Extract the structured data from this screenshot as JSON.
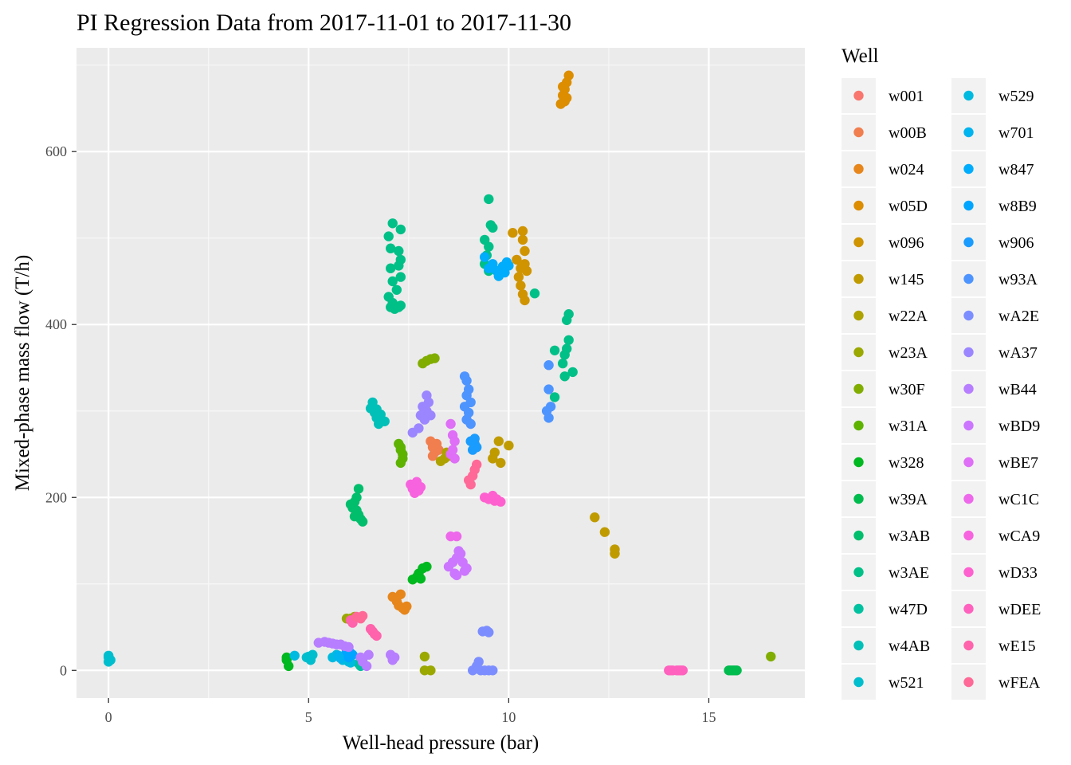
{
  "chart_data": {
    "type": "scatter",
    "title": "PI Regression Data from 2017-11-01 to 2017-11-30",
    "xlabel": "Well-head pressure (bar)",
    "ylabel": "Mixed-phase mass flow (T/h)",
    "xlim": [
      -0.8,
      17.4
    ],
    "ylim": [
      -32,
      720
    ],
    "xticks": [
      0,
      5,
      10,
      15
    ],
    "yticks": [
      0,
      200,
      400,
      600
    ],
    "grid": true,
    "legend": {
      "title": "Well",
      "position": "right",
      "columns": 2
    },
    "series": [
      {
        "name": "w001",
        "color": "#F8766D",
        "points": []
      },
      {
        "name": "w00B",
        "color": "#F17E4E",
        "points": [
          [
            8.05,
            265
          ],
          [
            8.1,
            258
          ],
          [
            8.15,
            252
          ],
          [
            8.2,
            262
          ],
          [
            8.1,
            248
          ],
          [
            8.25,
            255
          ]
        ]
      },
      {
        "name": "w024",
        "color": "#E7861B",
        "points": [
          [
            7.1,
            85
          ],
          [
            7.2,
            80
          ],
          [
            7.25,
            75
          ],
          [
            7.3,
            88
          ],
          [
            7.35,
            72
          ],
          [
            7.4,
            70
          ],
          [
            7.45,
            74
          ]
        ]
      },
      {
        "name": "w05D",
        "color": "#DC8D00",
        "points": [
          [
            11.3,
            655
          ],
          [
            11.35,
            665
          ],
          [
            11.4,
            672
          ],
          [
            11.45,
            680
          ],
          [
            11.5,
            688
          ],
          [
            11.4,
            658
          ],
          [
            11.45,
            662
          ],
          [
            11.35,
            675
          ]
        ]
      },
      {
        "name": "w096",
        "color": "#CF9400",
        "points": [
          [
            10.1,
            506
          ],
          [
            10.35,
            508
          ],
          [
            10.4,
            485
          ],
          [
            10.2,
            475
          ],
          [
            10.3,
            465
          ],
          [
            10.25,
            455
          ],
          [
            10.3,
            445
          ],
          [
            10.35,
            435
          ],
          [
            10.4,
            428
          ],
          [
            10.45,
            462
          ],
          [
            10.4,
            470
          ],
          [
            10.35,
            498
          ]
        ]
      },
      {
        "name": "w145",
        "color": "#C09B00",
        "points": [
          [
            9.6,
            245
          ],
          [
            9.65,
            252
          ],
          [
            9.75,
            265
          ],
          [
            9.8,
            240
          ],
          [
            10.0,
            260
          ],
          [
            12.15,
            177
          ],
          [
            12.4,
            160
          ],
          [
            12.65,
            140
          ],
          [
            12.65,
            135
          ]
        ]
      },
      {
        "name": "w22A",
        "color": "#AEA200",
        "points": [
          [
            8.3,
            242
          ],
          [
            8.4,
            245
          ],
          [
            8.5,
            248
          ],
          [
            8.45,
            252
          ]
        ]
      },
      {
        "name": "w23A",
        "color": "#9AA800",
        "points": [
          [
            5.95,
            60
          ],
          [
            6.05,
            60
          ],
          [
            6.15,
            62
          ],
          [
            7.9,
            16
          ],
          [
            7.9,
            0
          ],
          [
            8.05,
            0
          ]
        ]
      },
      {
        "name": "w30F",
        "color": "#81AD00",
        "points": [
          [
            7.85,
            355
          ],
          [
            7.95,
            358
          ],
          [
            8.05,
            360
          ],
          [
            8.15,
            361
          ],
          [
            16.55,
            16
          ]
        ]
      },
      {
        "name": "w31A",
        "color": "#5EB300",
        "points": [
          [
            7.25,
            262
          ],
          [
            7.3,
            255
          ],
          [
            7.35,
            245
          ],
          [
            7.3,
            240
          ],
          [
            7.35,
            250
          ],
          [
            7.3,
            258
          ]
        ]
      },
      {
        "name": "w328",
        "color": "#00B81F",
        "points": [
          [
            7.6,
            105
          ],
          [
            7.7,
            108
          ],
          [
            7.75,
            112
          ],
          [
            7.85,
            118
          ],
          [
            7.95,
            120
          ],
          [
            7.8,
            106
          ],
          [
            4.45,
            12
          ],
          [
            4.5,
            5
          ],
          [
            4.45,
            15
          ]
        ]
      },
      {
        "name": "w39A",
        "color": "#00BB4E",
        "points": [
          [
            15.5,
            0
          ],
          [
            15.55,
            0
          ],
          [
            15.6,
            0
          ],
          [
            15.65,
            0
          ],
          [
            15.7,
            0
          ]
        ]
      },
      {
        "name": "w3AB",
        "color": "#00BE6C",
        "points": [
          [
            6.05,
            192
          ],
          [
            6.1,
            188
          ],
          [
            6.15,
            195
          ],
          [
            6.2,
            185
          ],
          [
            6.25,
            180
          ],
          [
            6.3,
            175
          ],
          [
            6.35,
            172
          ],
          [
            6.2,
            200
          ],
          [
            6.25,
            210
          ],
          [
            6.15,
            178
          ]
        ]
      },
      {
        "name": "w3AE",
        "color": "#00C087",
        "points": [
          [
            7.1,
            517
          ],
          [
            7.3,
            510
          ],
          [
            7.0,
            502
          ],
          [
            7.05,
            488
          ],
          [
            7.25,
            485
          ],
          [
            7.3,
            475
          ],
          [
            7.25,
            468
          ],
          [
            7.05,
            465
          ],
          [
            7.3,
            455
          ],
          [
            7.1,
            450
          ],
          [
            7.2,
            440
          ],
          [
            7.0,
            432
          ],
          [
            7.1,
            425
          ],
          [
            7.25,
            420
          ],
          [
            7.15,
            418
          ],
          [
            7.05,
            420
          ],
          [
            7.3,
            422
          ],
          [
            9.5,
            545
          ],
          [
            9.55,
            515
          ],
          [
            9.6,
            512
          ],
          [
            9.4,
            498
          ],
          [
            9.5,
            490
          ],
          [
            9.45,
            480
          ],
          [
            9.4,
            470
          ],
          [
            9.5,
            462
          ],
          [
            11.5,
            412
          ],
          [
            11.45,
            405
          ],
          [
            11.5,
            382
          ],
          [
            11.45,
            372
          ],
          [
            11.4,
            365
          ],
          [
            11.35,
            355
          ],
          [
            11.6,
            345
          ],
          [
            11.4,
            340
          ],
          [
            11.15,
            370
          ],
          [
            11.15,
            316
          ],
          [
            10.65,
            436
          ]
        ]
      },
      {
        "name": "w47D",
        "color": "#00C1A0",
        "points": [
          [
            6.3,
            5
          ],
          [
            6.35,
            10
          ],
          [
            6.25,
            8
          ]
        ]
      },
      {
        "name": "w4AB",
        "color": "#00C0B8",
        "points": [
          [
            6.55,
            303
          ],
          [
            6.6,
            310
          ],
          [
            6.7,
            302
          ],
          [
            6.8,
            296
          ],
          [
            6.65,
            298
          ],
          [
            6.9,
            288
          ],
          [
            6.75,
            285
          ],
          [
            6.7,
            292
          ]
        ]
      },
      {
        "name": "w521",
        "color": "#00BECD",
        "points": [
          [
            0,
            10
          ],
          [
            0,
            15
          ],
          [
            0,
            17
          ],
          [
            0.05,
            12
          ],
          [
            5.0,
            16
          ],
          [
            5.05,
            12
          ],
          [
            5.1,
            18
          ],
          [
            4.95,
            15
          ]
        ]
      },
      {
        "name": "w529",
        "color": "#00BAE0",
        "points": [
          [
            4.65,
            17
          ],
          [
            5.6,
            15
          ],
          [
            5.7,
            18
          ],
          [
            5.85,
            12
          ],
          [
            6.0,
            10
          ],
          [
            6.05,
            9
          ]
        ]
      },
      {
        "name": "w701",
        "color": "#00B4EF",
        "points": [
          [
            5.75,
            17
          ],
          [
            5.8,
            14
          ]
        ]
      },
      {
        "name": "w847",
        "color": "#00ACFC",
        "points": [
          [
            9.4,
            478
          ],
          [
            9.6,
            470
          ],
          [
            9.7,
            462
          ],
          [
            9.75,
            456
          ],
          [
            9.5,
            465
          ],
          [
            9.85,
            467
          ],
          [
            9.95,
            472
          ],
          [
            10.0,
            468
          ],
          [
            9.9,
            460
          ]
        ]
      },
      {
        "name": "w8B9",
        "color": "#00A5FF",
        "points": [
          [
            5.95,
            22
          ],
          [
            6.05,
            20
          ],
          [
            6.1,
            18
          ],
          [
            6.0,
            15
          ]
        ]
      },
      {
        "name": "w906",
        "color": "#1A9CFF",
        "points": [
          [
            9.05,
            265
          ],
          [
            9.15,
            262
          ],
          [
            9.1,
            255
          ],
          [
            9.2,
            258
          ],
          [
            9.15,
            268
          ]
        ]
      },
      {
        "name": "w93A",
        "color": "#4E94FF",
        "points": [
          [
            8.9,
            340
          ],
          [
            8.95,
            335
          ],
          [
            9.0,
            325
          ],
          [
            8.95,
            318
          ],
          [
            9.05,
            310
          ],
          [
            8.9,
            305
          ],
          [
            9.0,
            298
          ],
          [
            8.95,
            290
          ],
          [
            9.05,
            285
          ],
          [
            11.0,
            353
          ],
          [
            11.0,
            325
          ],
          [
            11.05,
            305
          ],
          [
            10.95,
            300
          ],
          [
            11.0,
            292
          ]
        ]
      },
      {
        "name": "wA2E",
        "color": "#7C8EFF",
        "points": [
          [
            9.1,
            0
          ],
          [
            9.2,
            5
          ],
          [
            9.3,
            0
          ],
          [
            9.4,
            0
          ],
          [
            9.5,
            0
          ],
          [
            9.6,
            0
          ],
          [
            9.25,
            10
          ],
          [
            9.35,
            45
          ],
          [
            9.45,
            46
          ],
          [
            9.5,
            44
          ]
        ]
      },
      {
        "name": "wA37",
        "color": "#9C86FF",
        "points": [
          [
            7.6,
            275
          ],
          [
            7.75,
            280
          ],
          [
            7.8,
            295
          ],
          [
            7.85,
            305
          ],
          [
            7.9,
            290
          ],
          [
            7.95,
            300
          ],
          [
            8.0,
            310
          ],
          [
            7.95,
            318
          ],
          [
            8.05,
            295
          ]
        ]
      },
      {
        "name": "wB44",
        "color": "#B77EFF",
        "points": [
          [
            5.25,
            32
          ],
          [
            5.4,
            33
          ],
          [
            5.5,
            32
          ],
          [
            5.6,
            31
          ],
          [
            5.7,
            30
          ],
          [
            5.8,
            30
          ],
          [
            5.9,
            28
          ],
          [
            6.0,
            27
          ],
          [
            6.3,
            15
          ],
          [
            6.35,
            10
          ],
          [
            6.45,
            5
          ],
          [
            6.5,
            18
          ],
          [
            7.05,
            18
          ],
          [
            7.1,
            12
          ],
          [
            7.15,
            15
          ]
        ]
      },
      {
        "name": "wBD9",
        "color": "#CC76FF",
        "points": [
          [
            8.5,
            120
          ],
          [
            8.6,
            125
          ],
          [
            8.7,
            130
          ],
          [
            8.75,
            138
          ],
          [
            8.8,
            135
          ],
          [
            8.85,
            125
          ],
          [
            8.9,
            115
          ],
          [
            8.95,
            118
          ],
          [
            8.65,
            112
          ],
          [
            8.7,
            110
          ]
        ]
      },
      {
        "name": "wBE7",
        "color": "#DE6FF6",
        "points": [
          [
            8.55,
            285
          ],
          [
            8.6,
            272
          ],
          [
            8.65,
            265
          ],
          [
            8.6,
            255
          ],
          [
            8.55,
            250
          ],
          [
            8.65,
            245
          ]
        ]
      },
      {
        "name": "wC1C",
        "color": "#ED68EB",
        "points": [
          [
            8.55,
            155
          ],
          [
            8.7,
            155
          ]
        ]
      },
      {
        "name": "wCA9",
        "color": "#F763DE",
        "points": [
          [
            7.55,
            215
          ],
          [
            7.6,
            210
          ],
          [
            7.65,
            205
          ],
          [
            7.7,
            218
          ],
          [
            7.75,
            208
          ],
          [
            7.8,
            212
          ]
        ]
      },
      {
        "name": "wD33",
        "color": "#FE61CF",
        "points": [
          [
            9.4,
            200
          ],
          [
            9.5,
            198
          ],
          [
            9.6,
            202
          ],
          [
            9.65,
            196
          ],
          [
            9.7,
            198
          ],
          [
            9.8,
            195
          ]
        ]
      },
      {
        "name": "wDEE",
        "color": "#FF61BE",
        "points": [
          [
            14.0,
            0
          ],
          [
            14.1,
            0
          ],
          [
            14.2,
            0
          ],
          [
            14.3,
            0
          ],
          [
            14.35,
            0
          ],
          [
            14.05,
            0
          ],
          [
            14.25,
            0
          ]
        ]
      },
      {
        "name": "wE15",
        "color": "#FF63AB",
        "points": [
          [
            6.05,
            58
          ],
          [
            6.1,
            55
          ],
          [
            6.55,
            48
          ],
          [
            6.6,
            45
          ],
          [
            6.65,
            42
          ],
          [
            6.7,
            40
          ]
        ]
      },
      {
        "name": "wFEA",
        "color": "#FF6997",
        "points": [
          [
            6.2,
            62
          ],
          [
            6.3,
            60
          ],
          [
            6.35,
            63
          ],
          [
            9.05,
            215
          ],
          [
            9.1,
            225
          ],
          [
            9.15,
            232
          ],
          [
            9.2,
            238
          ],
          [
            9.0,
            220
          ]
        ]
      }
    ]
  }
}
